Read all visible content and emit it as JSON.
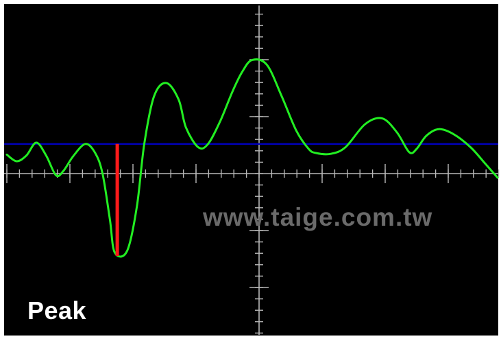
{
  "chart_data": {
    "type": "line",
    "title": "",
    "xlabel": "",
    "ylabel": "",
    "xlim": [
      -10,
      10
    ],
    "ylim": [
      -7,
      7
    ],
    "grid": true,
    "series": [
      {
        "name": "",
        "color": "#22ee22",
        "points": [
          [
            -10.0,
            1.15
          ],
          [
            -9.6,
            0.75
          ],
          [
            -9.2,
            1.1
          ],
          [
            -8.8,
            1.88
          ],
          [
            -8.4,
            1.1
          ],
          [
            -8.0,
            -0.1
          ],
          [
            -7.7,
            0.15
          ],
          [
            -7.3,
            1.05
          ],
          [
            -6.8,
            1.8
          ],
          [
            -6.4,
            1.25
          ],
          [
            -6.1,
            0.0
          ],
          [
            -5.8,
            -2.8
          ],
          [
            -5.6,
            -4.8
          ],
          [
            -5.1,
            -4.7
          ],
          [
            -4.7,
            -2.0
          ],
          [
            -4.4,
            1.8
          ],
          [
            -4.0,
            4.7
          ],
          [
            -3.5,
            5.5
          ],
          [
            -3.0,
            4.5
          ],
          [
            -2.7,
            2.8
          ],
          [
            -2.2,
            1.6
          ],
          [
            -1.8,
            1.8
          ],
          [
            -1.3,
            3.2
          ],
          [
            -0.8,
            5.0
          ],
          [
            -0.4,
            6.2
          ],
          [
            0.0,
            6.9
          ],
          [
            0.6,
            6.6
          ],
          [
            1.2,
            4.7
          ],
          [
            1.8,
            2.6
          ],
          [
            2.3,
            1.5
          ],
          [
            2.6,
            1.25
          ],
          [
            3.2,
            1.2
          ],
          [
            3.8,
            1.6
          ],
          [
            4.6,
            3.0
          ],
          [
            5.3,
            3.35
          ],
          [
            5.9,
            2.5
          ],
          [
            6.4,
            1.3
          ],
          [
            6.7,
            1.5
          ],
          [
            7.1,
            2.3
          ],
          [
            7.6,
            2.7
          ],
          [
            8.2,
            2.4
          ],
          [
            8.9,
            1.6
          ],
          [
            9.5,
            0.6
          ],
          [
            10.0,
            -0.25
          ]
        ]
      }
    ],
    "threshold": {
      "y": 1.8,
      "color": "#0000bb"
    },
    "peak": {
      "x": -5.5,
      "from": 1.8,
      "to": -5.0,
      "color": "#ff1a1a"
    }
  },
  "labels": {
    "mode": "Peak",
    "watermark": "www.taige.com.tw"
  },
  "colors": {
    "screen_bg": "#000000",
    "graticule": "#b8b8b8"
  }
}
